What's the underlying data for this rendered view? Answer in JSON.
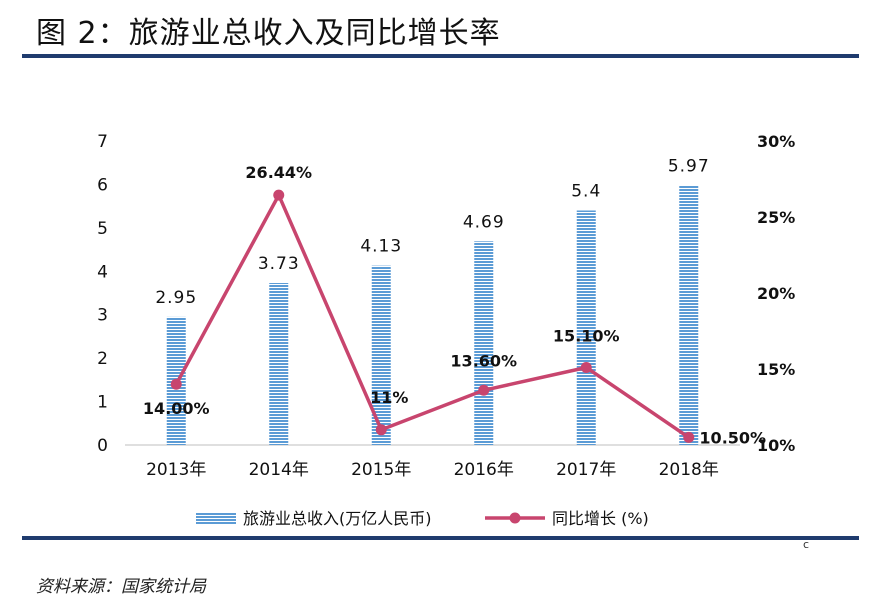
{
  "figure": {
    "title": "图 2：旅游业总收入及同比增长率",
    "source": "资料来源：国家统计局",
    "page_mark": "c"
  },
  "colors": {
    "bar": "#5b9bd5",
    "line": "#c8456e",
    "rule": "#1f3b6e"
  },
  "chart_data": {
    "type": "bar",
    "categories": [
      "2013年",
      "2014年",
      "2015年",
      "2016年",
      "2017年",
      "2018年"
    ],
    "series": [
      {
        "name": "旅游业总收入(万亿人民币)",
        "type": "bar",
        "axis": "left",
        "values": [
          2.95,
          3.73,
          4.13,
          4.69,
          5.4,
          5.97
        ],
        "labels": [
          "2.95",
          "3.73",
          "4.13",
          "4.69",
          "5.4",
          "5.97"
        ]
      },
      {
        "name": "同比增长 (%)",
        "type": "line",
        "axis": "right",
        "values": [
          14.0,
          26.44,
          11.0,
          13.6,
          15.1,
          10.5
        ],
        "labels": [
          "14.00%",
          "26.44%",
          "11%",
          "13.60%",
          "15.10%",
          "10.50%"
        ]
      }
    ],
    "y_left": {
      "ylim": [
        0,
        7
      ],
      "ticks": [
        "0",
        "1",
        "2",
        "3",
        "4",
        "5",
        "6",
        "7"
      ]
    },
    "y_right": {
      "ylim": [
        10,
        30
      ],
      "ticks": [
        "10%",
        "15%",
        "20%",
        "25%",
        "30%"
      ]
    },
    "grid": false,
    "legend": "bottom"
  }
}
